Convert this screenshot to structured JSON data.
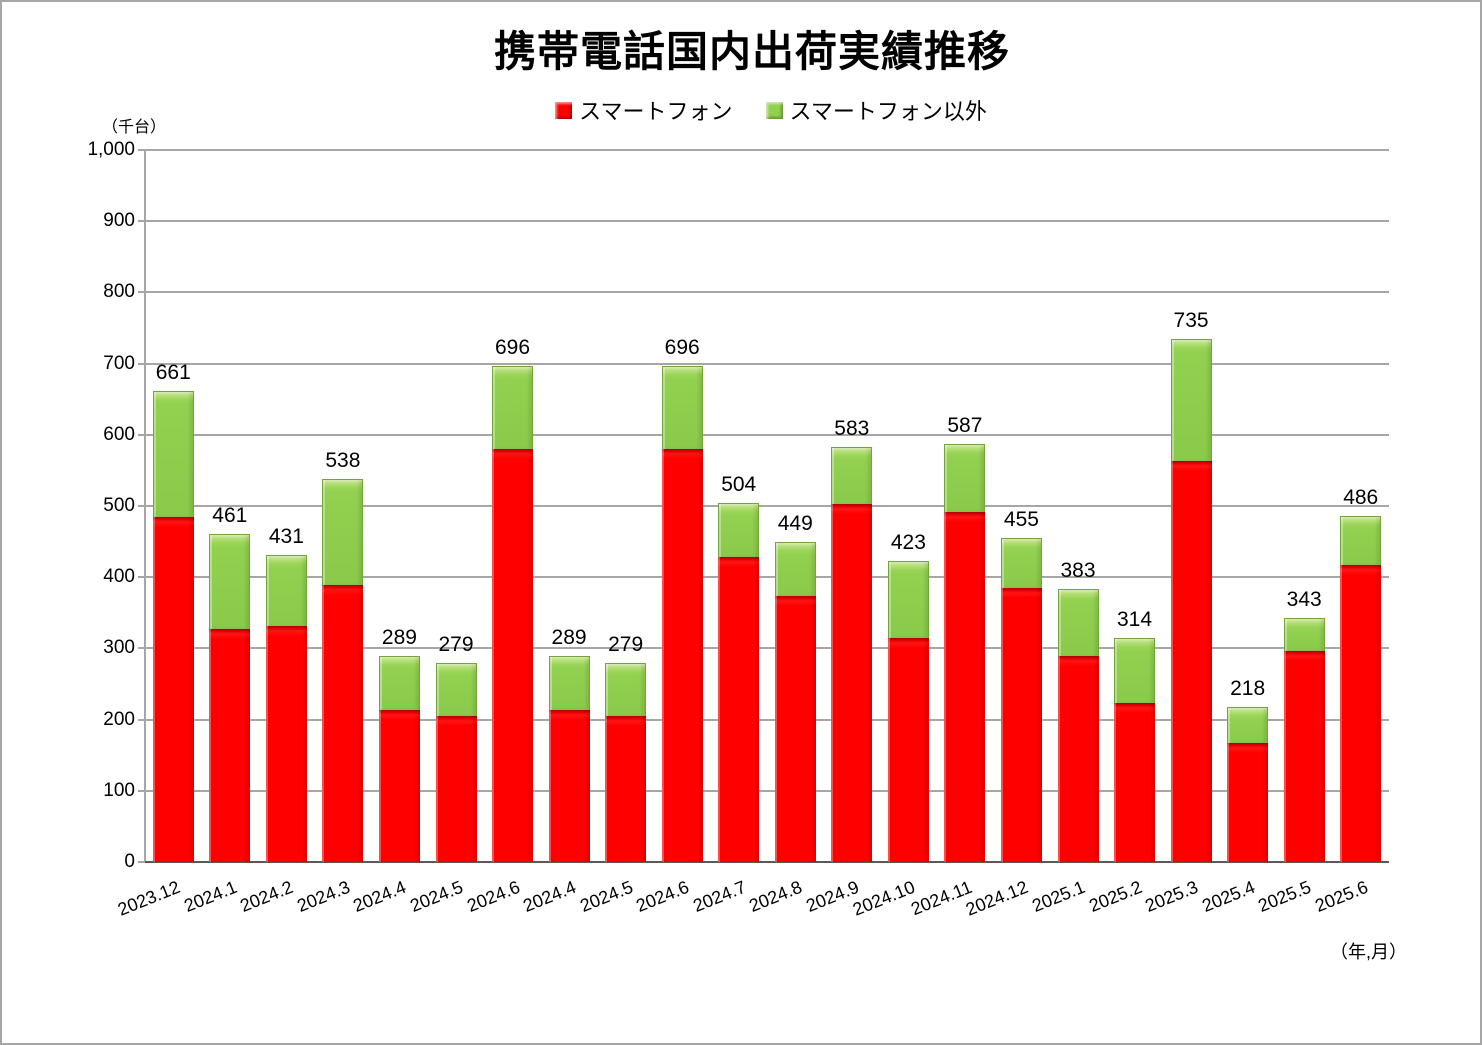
{
  "title": "携帯電話国内出荷実績推移",
  "legend": [
    {
      "label": "スマートフォン",
      "color": "#ff0000"
    },
    {
      "label": "スマートフォン以外",
      "color": "#92d050"
    }
  ],
  "axes": {
    "y_unit": "（千台）",
    "x_unit": "（年,月）"
  },
  "chart_data": {
    "type": "bar",
    "stacked": true,
    "title": "携帯電話国内出荷実績推移",
    "categories": [
      "2023.12",
      "2024.1",
      "2024.2",
      "2024.3",
      "2024.4",
      "2024.5",
      "2024.6",
      "2024.4",
      "2024.5",
      "2024.6",
      "2024.7",
      "2024.8",
      "2024.9",
      "2024.10",
      "2024.11",
      "2024.12",
      "2025.1",
      "2025.2",
      "2025.3",
      "2025.4",
      "2025.5",
      "2025.6"
    ],
    "series": [
      {
        "name": "スマートフォン",
        "color": "#ff0000",
        "values": [
          485,
          327,
          331,
          389,
          214,
          205,
          580,
          214,
          205,
          580,
          428,
          374,
          503,
          314,
          492,
          385,
          290,
          224,
          563,
          167,
          296,
          417
        ]
      },
      {
        "name": "スマートフォン以外",
        "color": "#92d050",
        "values": [
          176,
          134,
          100,
          149,
          75,
          74,
          116,
          75,
          74,
          116,
          76,
          75,
          80,
          109,
          95,
          70,
          93,
          90,
          172,
          51,
          47,
          69
        ]
      }
    ],
    "totals": [
      661,
      461,
      431,
      538,
      289,
      279,
      696,
      289,
      279,
      696,
      504,
      449,
      583,
      423,
      587,
      455,
      383,
      314,
      735,
      218,
      343,
      486
    ],
    "ylim": [
      0,
      1000
    ],
    "ytick_step": 100,
    "y_unit_label": "（千台）",
    "x_unit_label": "（年,月）",
    "grid": true,
    "legend_position": "top",
    "data_labels": "totals shown above each bar"
  }
}
